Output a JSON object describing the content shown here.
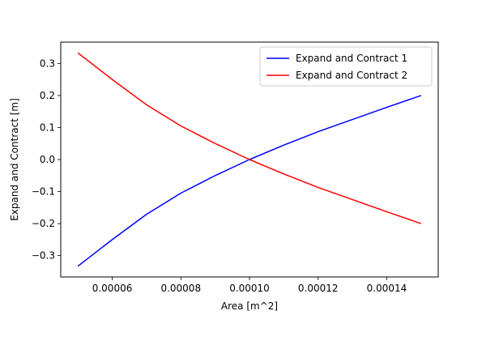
{
  "chart_data": {
    "type": "line",
    "title": "",
    "xlabel": "Area [m^2]",
    "ylabel": "Expand and Contract [m]",
    "xlim": [
      4.5e-05,
      0.000155
    ],
    "ylim": [
      -0.3667,
      0.3667
    ],
    "xticks": [
      6e-05,
      8e-05,
      0.0001,
      0.00012,
      0.00014
    ],
    "xtick_labels": [
      "0.00006",
      "0.00008",
      "0.00010",
      "0.00012",
      "0.00014"
    ],
    "yticks": [
      -0.3,
      -0.2,
      -0.1,
      0.0,
      0.1,
      0.2,
      0.3
    ],
    "ytick_labels": [
      "−0.3",
      "−0.2",
      "−0.1",
      "0.0",
      "0.1",
      "0.2",
      "0.3"
    ],
    "grid": false,
    "legend_position": "top-right",
    "series": [
      {
        "name": "Expand and Contract 1",
        "color": "#0000ff",
        "x": [
          5e-05,
          6e-05,
          7e-05,
          8e-05,
          9e-05,
          0.0001,
          0.00011,
          0.00012,
          0.00013,
          0.00014,
          0.00015
        ],
        "y": [
          -0.333,
          -0.25,
          -0.171,
          -0.105,
          -0.05,
          0.0,
          0.045,
          0.087,
          0.125,
          0.163,
          0.2
        ]
      },
      {
        "name": "Expand and Contract 2",
        "color": "#ff0000",
        "x": [
          5e-05,
          6e-05,
          7e-05,
          8e-05,
          9e-05,
          0.0001,
          0.00011,
          0.00012,
          0.00013,
          0.00014,
          0.00015
        ],
        "y": [
          0.333,
          0.25,
          0.171,
          0.105,
          0.05,
          0.0,
          -0.045,
          -0.087,
          -0.125,
          -0.163,
          -0.2
        ]
      }
    ]
  }
}
